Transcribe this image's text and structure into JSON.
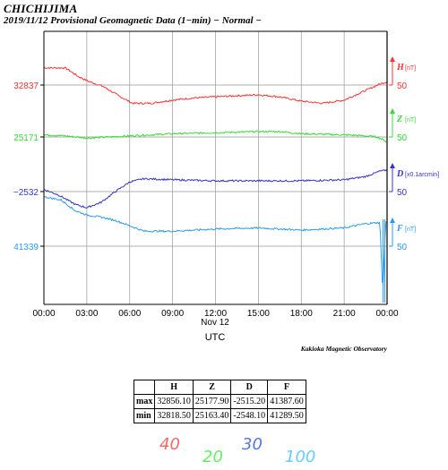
{
  "station": "CHICHIJIMA",
  "subtitle": "2019/11/12  Provisional Geomagnetic Data (1−min)  − Normal −",
  "observatory": "Kakioka Magnetic Observatory",
  "colors": {
    "H": "#ff3333",
    "Z": "#33dd33",
    "D": "#3333cc",
    "F": "#2b9bf0",
    "grid": "#999999"
  },
  "chart_data": {
    "type": "line",
    "x_unit": "UTC hours",
    "x_ticks": [
      "00:00",
      "03:00",
      "06:00",
      "09:00",
      "12:00",
      "15:00",
      "18:00",
      "21:00",
      "00:00"
    ],
    "x_date_label": "Nov 12",
    "x_axis_label": "UTC",
    "xlim": [
      0,
      24
    ],
    "series": [
      {
        "name": "H",
        "unit_label": "[nT]",
        "base": 32837,
        "base_label": "32837",
        "scale": 50,
        "scale_label": "50",
        "points": [
          [
            0,
            32853
          ],
          [
            1.5,
            32853
          ],
          [
            2.4,
            32845
          ],
          [
            3.2,
            32840
          ],
          [
            4.1,
            32836
          ],
          [
            5.1,
            32828
          ],
          [
            6.2,
            32820
          ],
          [
            7.5,
            32820
          ],
          [
            9.0,
            32823
          ],
          [
            10.5,
            32825
          ],
          [
            12.0,
            32826
          ],
          [
            13.5,
            32827
          ],
          [
            15.0,
            32828
          ],
          [
            16.5,
            32826
          ],
          [
            18.0,
            32822
          ],
          [
            19.5,
            32820
          ],
          [
            21.0,
            32823
          ],
          [
            22.5,
            32832
          ],
          [
            23.5,
            32838
          ],
          [
            24,
            32840
          ]
        ]
      },
      {
        "name": "Z",
        "unit_label": "[nT]",
        "base": 25171,
        "base_label": "25171",
        "scale": 50,
        "scale_label": "50",
        "points": [
          [
            0,
            25173
          ],
          [
            1.5,
            25172
          ],
          [
            3.0,
            25170
          ],
          [
            4.5,
            25171
          ],
          [
            6.0,
            25172
          ],
          [
            9.0,
            25174
          ],
          [
            12.0,
            25175
          ],
          [
            15.0,
            25176
          ],
          [
            16.5,
            25176
          ],
          [
            18.0,
            25174
          ],
          [
            21.0,
            25173
          ],
          [
            22.5,
            25172
          ],
          [
            23.3,
            25171
          ],
          [
            23.8,
            25168
          ],
          [
            24,
            25166
          ]
        ]
      },
      {
        "name": "D",
        "unit_label": "[x0.1arcmin]",
        "base": -2532,
        "base_label": "−2532",
        "scale": 50,
        "scale_label": "50",
        "points": [
          [
            0,
            -2530
          ],
          [
            1.0,
            -2535
          ],
          [
            2.2,
            -2544
          ],
          [
            3.0,
            -2547
          ],
          [
            4.0,
            -2542
          ],
          [
            5.0,
            -2532
          ],
          [
            6.0,
            -2523
          ],
          [
            7.0,
            -2520
          ],
          [
            9.0,
            -2521
          ],
          [
            12.0,
            -2522
          ],
          [
            15.0,
            -2522
          ],
          [
            18.0,
            -2522
          ],
          [
            21.0,
            -2521
          ],
          [
            22.5,
            -2518
          ],
          [
            23.5,
            -2513
          ],
          [
            24,
            -2512
          ]
        ]
      },
      {
        "name": "F",
        "unit_label": "[nT]",
        "base": 41339,
        "base_label": "41339",
        "scale": 50,
        "scale_label": "50",
        "points": [
          [
            0,
            41385
          ],
          [
            1.2,
            41382
          ],
          [
            2.2,
            41372
          ],
          [
            3.0,
            41368
          ],
          [
            4.0,
            41366
          ],
          [
            5.0,
            41363
          ],
          [
            6.0,
            41358
          ],
          [
            7.0,
            41353
          ],
          [
            9.0,
            41353
          ],
          [
            12.0,
            41355
          ],
          [
            15.0,
            41356
          ],
          [
            18.0,
            41354
          ],
          [
            21.0,
            41356
          ],
          [
            22.5,
            41360
          ],
          [
            23.5,
            41361
          ],
          [
            23.7,
            41295
          ],
          [
            23.9,
            41361
          ],
          [
            24,
            41362
          ]
        ]
      }
    ]
  },
  "table": {
    "columns": [
      "",
      "H",
      "Z",
      "D",
      "F"
    ],
    "rows": [
      {
        "label": "max",
        "values": [
          "32856.10",
          "25177.90",
          "-2515.20",
          "41387.60"
        ]
      },
      {
        "label": "min",
        "values": [
          "32818.50",
          "25163.40",
          "-2548.10",
          "41289.50"
        ]
      }
    ]
  },
  "scale_legend": [
    {
      "text": "40",
      "color": "#ff6666"
    },
    {
      "text": "20",
      "color": "#66ee66"
    },
    {
      "text": "30",
      "color": "#5577dd"
    },
    {
      "text": "100",
      "color": "#66ccff"
    }
  ]
}
